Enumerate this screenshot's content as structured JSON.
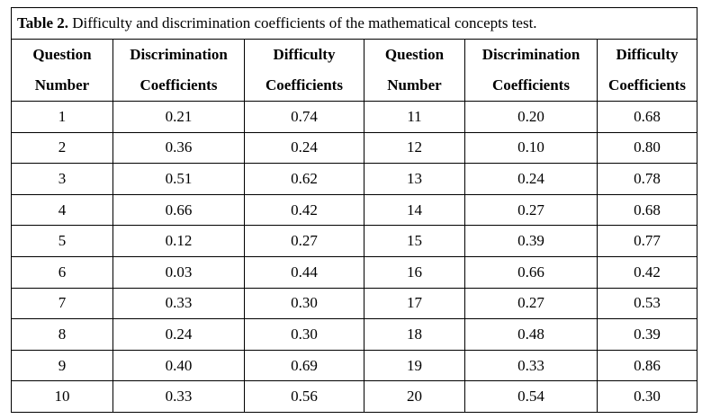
{
  "caption": {
    "label": "Table 2.",
    "text": " Difficulty and discrimination coefficients of the mathematical concepts test."
  },
  "headers": [
    [
      "Question",
      "Number"
    ],
    [
      "Discrimination",
      "Coefficients"
    ],
    [
      "Difficulty",
      "Coefficients"
    ],
    [
      "Question",
      "Number"
    ],
    [
      "Discrimination",
      "Coefficients"
    ],
    [
      "Difficulty",
      "Coefficients"
    ]
  ],
  "rows": [
    [
      "1",
      "0.21",
      "0.74",
      "11",
      "0.20",
      "0.68"
    ],
    [
      "2",
      "0.36",
      "0.24",
      "12",
      "0.10",
      "0.80"
    ],
    [
      "3",
      "0.51",
      "0.62",
      "13",
      "0.24",
      "0.78"
    ],
    [
      "4",
      "0.66",
      "0.42",
      "14",
      "0.27",
      "0.68"
    ],
    [
      "5",
      "0.12",
      "0.27",
      "15",
      "0.39",
      "0.77"
    ],
    [
      "6",
      "0.03",
      "0.44",
      "16",
      "0.66",
      "0.42"
    ],
    [
      "7",
      "0.33",
      "0.30",
      "17",
      "0.27",
      "0.53"
    ],
    [
      "8",
      "0.24",
      "0.30",
      "18",
      "0.48",
      "0.39"
    ],
    [
      "9",
      "0.40",
      "0.69",
      "19",
      "0.33",
      "0.86"
    ],
    [
      "10",
      "0.33",
      "0.56",
      "20",
      "0.54",
      "0.30"
    ]
  ]
}
